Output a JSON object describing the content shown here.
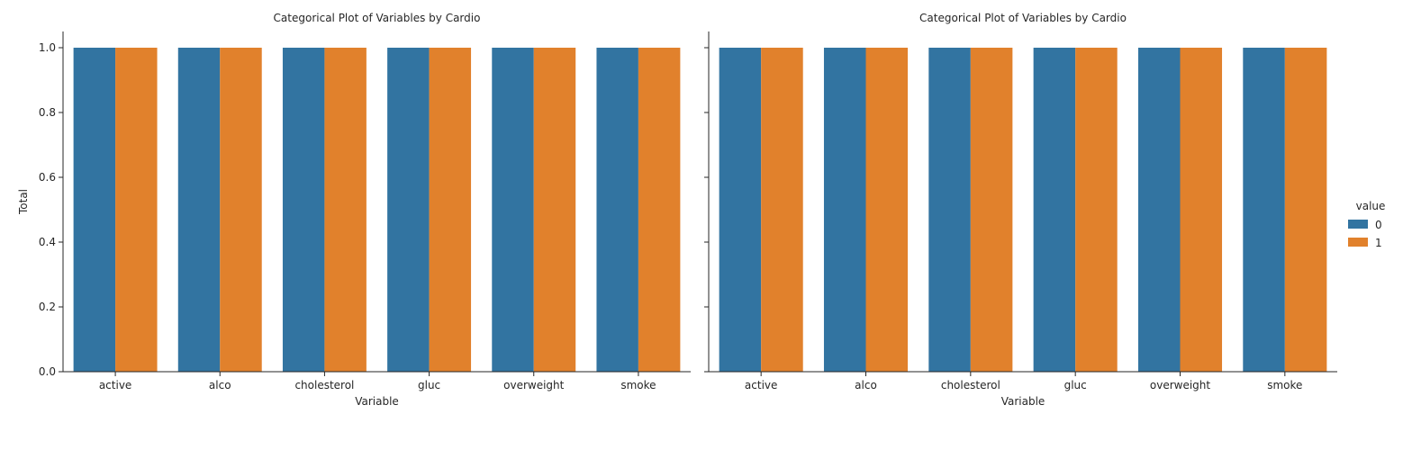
{
  "chart_data": {
    "type": "bar",
    "legend": {
      "title": "value",
      "placement": "right"
    },
    "panels": [
      {
        "title": "Categorical Plot of Variables by Cardio",
        "xlabel": "Variable",
        "ylabel": "Total",
        "ylim": [
          0,
          1.05
        ],
        "yticks": [
          "0.0",
          "0.2",
          "0.4",
          "0.6",
          "0.8",
          "1.0"
        ],
        "categories": [
          "active",
          "alco",
          "cholesterol",
          "gluc",
          "overweight",
          "smoke"
        ],
        "series": [
          {
            "name": "0",
            "color": "#3274a1",
            "values": [
              1,
              1,
              1,
              1,
              1,
              1
            ]
          },
          {
            "name": "1",
            "color": "#e1812c",
            "values": [
              1,
              1,
              1,
              1,
              1,
              1
            ]
          }
        ]
      },
      {
        "title": "Categorical Plot of Variables by Cardio",
        "xlabel": "Variable",
        "ylabel": "",
        "ylim": [
          0,
          1.05
        ],
        "yticks": [
          "0.0",
          "0.2",
          "0.4",
          "0.6",
          "0.8",
          "1.0"
        ],
        "categories": [
          "active",
          "alco",
          "cholesterol",
          "gluc",
          "overweight",
          "smoke"
        ],
        "series": [
          {
            "name": "0",
            "color": "#3274a1",
            "values": [
              1,
              1,
              1,
              1,
              1,
              1
            ]
          },
          {
            "name": "1",
            "color": "#e1812c",
            "values": [
              1,
              1,
              1,
              1,
              1,
              1
            ]
          }
        ]
      }
    ]
  }
}
